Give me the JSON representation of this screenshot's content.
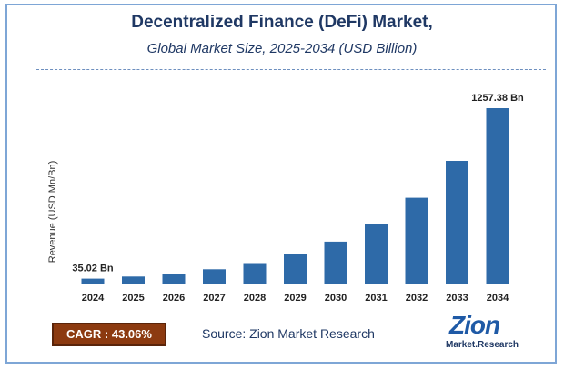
{
  "header": {
    "title": "Decentralized Finance (DeFi) Market,",
    "subtitle": "Global Market Size, 2025-2034 (USD Billion)"
  },
  "chart_data": {
    "type": "bar",
    "ylabel": "Revenue (USD Mn/Bn)",
    "categories": [
      "2024",
      "2025",
      "2026",
      "2027",
      "2028",
      "2029",
      "2030",
      "2031",
      "2032",
      "2033",
      "2034"
    ],
    "values": [
      35.02,
      50.1,
      71.7,
      102.6,
      146.8,
      210.0,
      300.4,
      429.8,
      614.9,
      879.7,
      1257.38
    ],
    "labels": [
      {
        "category": "2024",
        "text": "35.02 Bn"
      },
      {
        "category": "2034",
        "text": "1257.38 Bn"
      }
    ],
    "bar_color": "#2e6aa8",
    "grid": false
  },
  "footer": {
    "cagr": "CAGR : 43.06%",
    "source": "Source: Zion Market Research",
    "logo_main": "Zion",
    "logo_sub": "Market.Research"
  }
}
